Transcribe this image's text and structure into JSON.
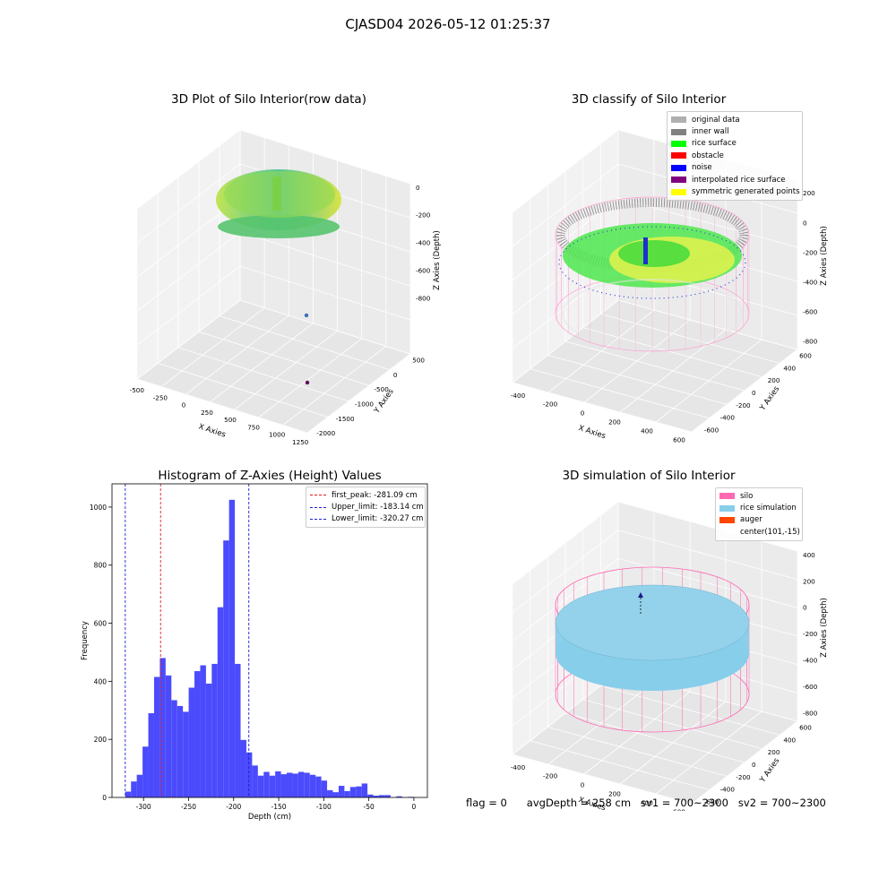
{
  "suptitle": "CJASD04 2026-05-12 01:25:37",
  "colors": {
    "hist_bar": "#4b4bfd",
    "first_peak_line": "#e31a1c",
    "limit_line": "#1f1fd6",
    "silo": "#ff69b4",
    "rice_simulation": "#87ceeb",
    "auger": "#ff4500"
  },
  "panels": {
    "raw": {
      "title": "3D Plot of Silo Interior(row data)",
      "x_label": "X Axies",
      "y_label": "Y Axies",
      "z_label": "Z Axies (Depth)",
      "x_ticks": [
        "-500",
        "-250",
        "0",
        "250",
        "500",
        "750",
        "1000",
        "1250"
      ],
      "y_ticks": [
        "500",
        "0",
        "-500",
        "-1000",
        "-1500",
        "-2000"
      ],
      "z_ticks": [
        "0",
        "-200",
        "-400",
        "-600",
        "-800"
      ]
    },
    "classify": {
      "title": "3D classify of Silo Interior",
      "x_label": "X Axies",
      "y_label": "Y Axies",
      "z_label": "Z Axies (Depth)",
      "x_ticks": [
        "-400",
        "-200",
        "0",
        "200",
        "400",
        "600"
      ],
      "y_ticks": [
        "600",
        "400",
        "200",
        "0",
        "-200",
        "-400",
        "-600"
      ],
      "z_ticks": [
        "200",
        "0",
        "-200",
        "-400",
        "-600",
        "-800"
      ],
      "legend": [
        {
          "label": "original data",
          "color": "#b0b0b0"
        },
        {
          "label": "inner wall",
          "color": "#808080"
        },
        {
          "label": "rice surface",
          "color": "#00ff00"
        },
        {
          "label": "obstacle",
          "color": "#ff0000"
        },
        {
          "label": "noise",
          "color": "#0000ff"
        },
        {
          "label": "interpolated rice surface",
          "color": "#800080"
        },
        {
          "label": "symmetric generated points",
          "color": "#ffff00"
        }
      ]
    },
    "simulation": {
      "title": "3D simulation of Silo Interior",
      "x_label": "X Axies",
      "y_label": "Y Axies",
      "z_label": "Z Axies (Depth)",
      "x_ticks": [
        "-400",
        "-200",
        "0",
        "200",
        "400",
        "600"
      ],
      "y_ticks": [
        "600",
        "400",
        "200",
        "0",
        "-200",
        "-400",
        "-600"
      ],
      "z_ticks": [
        "400",
        "200",
        "0",
        "-200",
        "-400",
        "-600",
        "-800"
      ],
      "legend": [
        {
          "label": "silo",
          "color": "#ff69b4"
        },
        {
          "label": "rice simulation",
          "color": "#87ceeb"
        },
        {
          "label": "auger",
          "color": "#ff4500"
        },
        {
          "label": "center(101,-15)",
          "color": ""
        }
      ]
    }
  },
  "chart_data": {
    "type": "bar",
    "title": "Histogram of Z-Axies (Height) Values",
    "xlabel": "Depth (cm)",
    "ylabel": "Frequency",
    "xlim": [
      -335,
      15
    ],
    "ylim": [
      0,
      1080
    ],
    "x_ticks": [
      -300,
      -250,
      -200,
      -150,
      -100,
      -50,
      0
    ],
    "y_ticks": [
      0,
      200,
      400,
      600,
      800,
      1000
    ],
    "bin_width": 6.4,
    "bin_start": -320.3,
    "values": [
      20,
      55,
      78,
      175,
      290,
      415,
      480,
      420,
      335,
      315,
      295,
      378,
      435,
      455,
      392,
      460,
      655,
      885,
      1025,
      460,
      198,
      155,
      110,
      75,
      88,
      75,
      90,
      80,
      85,
      82,
      88,
      85,
      78,
      72,
      58,
      25,
      18,
      40,
      22,
      36,
      38,
      48,
      10,
      6,
      8,
      8,
      0,
      4,
      0,
      2
    ],
    "lines": [
      {
        "label": "first_peak: -281.09 cm",
        "x": -281.09,
        "color_key": "first_peak_line"
      },
      {
        "label": "Upper_limit: -183.14 cm",
        "x": -183.14,
        "color_key": "limit_line"
      },
      {
        "label": "Lower_limit: -320.27 cm",
        "x": -320.27,
        "color_key": "limit_line"
      }
    ],
    "legend_position": "upper right",
    "grid": false
  },
  "footer": {
    "flag": "flag = 0",
    "avg_depth": "avgDepth = 258 cm",
    "sv1": "sv1 = 700~2300",
    "sv2": "sv2 = 700~2300"
  }
}
